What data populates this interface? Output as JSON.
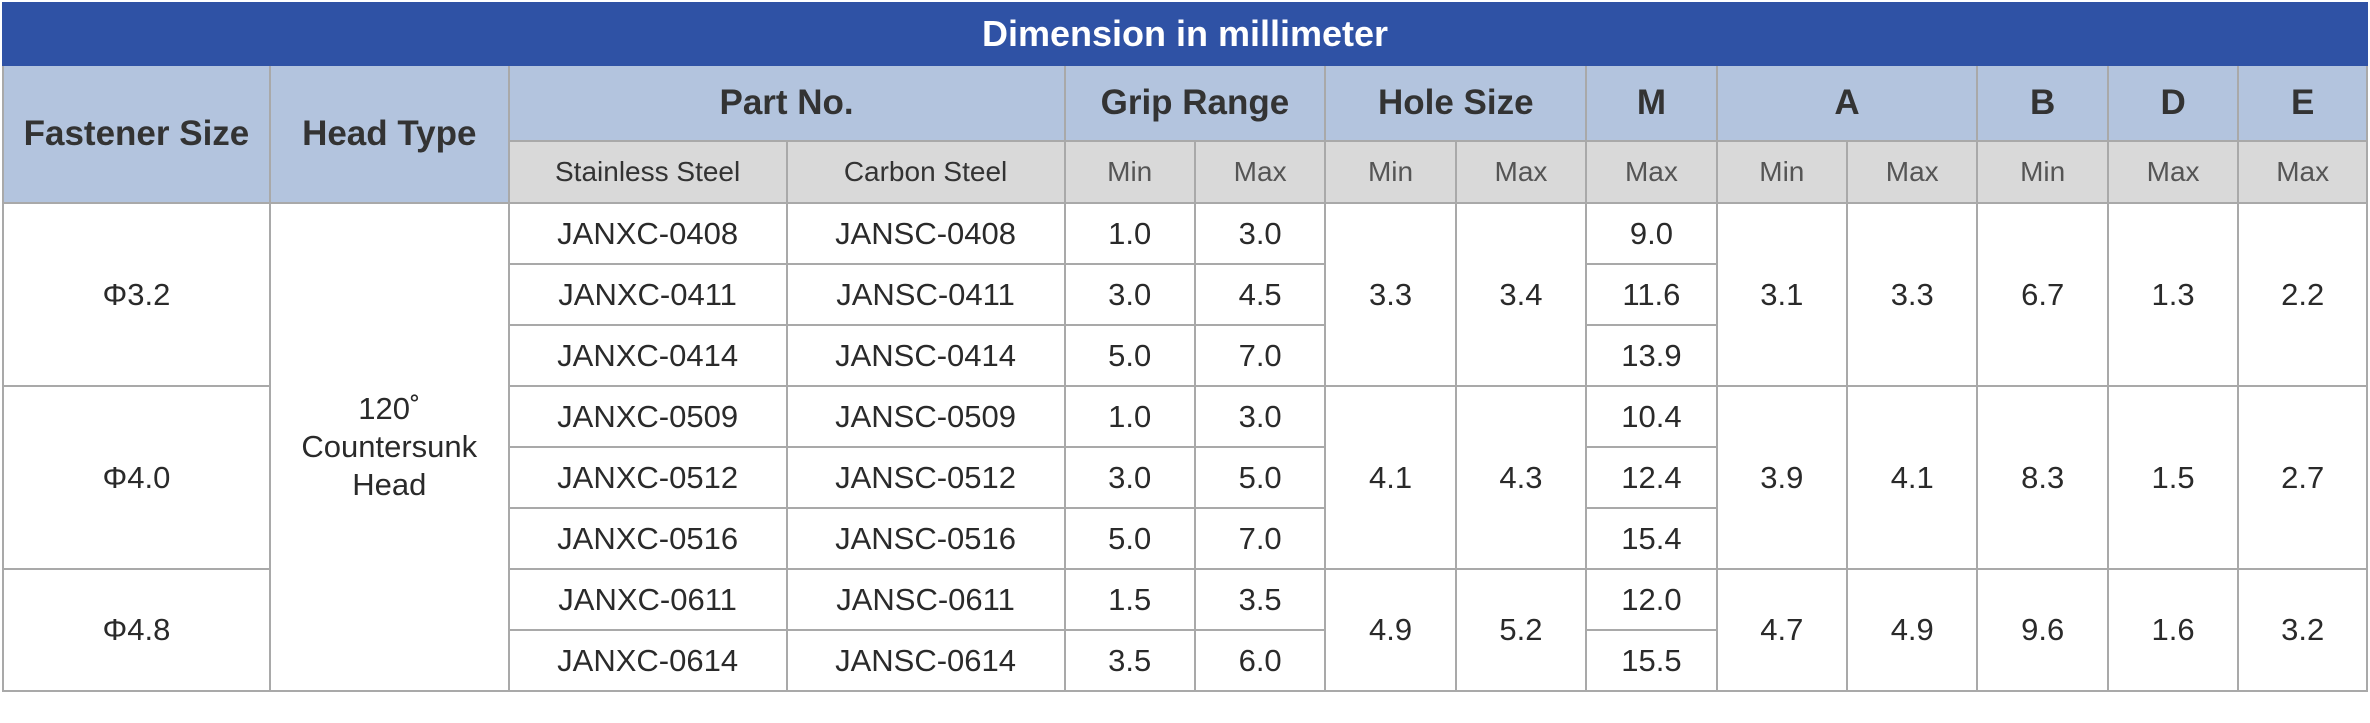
{
  "title": "Dimension in millimeter",
  "headers": {
    "fastener_size": "Fastener Size",
    "head_type": "Head Type",
    "part_no": "Part No.",
    "grip_range": "Grip Range",
    "hole_size": "Hole Size",
    "m": "M",
    "a": "A",
    "b": "B",
    "d": "D",
    "e": "E",
    "stainless_steel": "Stainless Steel",
    "carbon_steel": "Carbon Steel",
    "grip_min": "Min",
    "grip_max": "Max",
    "hole_min": "Min",
    "hole_max": "Max",
    "m_max": "Max",
    "a_min": "Min",
    "a_max": "Max",
    "b_min": "Min",
    "d_max": "Max",
    "e_max": "Max"
  },
  "head_type": {
    "line1": "120˚",
    "line2": "Countersunk",
    "line3": "Head"
  },
  "groups": [
    {
      "size": "Φ3.2",
      "hole_min": "3.3",
      "hole_max": "3.4",
      "a_min": "3.1",
      "a_max": "3.3",
      "b_min": "6.7",
      "d_max": "1.3",
      "e_max": "2.2",
      "rows": [
        {
          "ss": "JANXC-0408",
          "cs": "JANSC-0408",
          "grip_min": "1.0",
          "grip_max": "3.0",
          "m_max": "9.0"
        },
        {
          "ss": "JANXC-0411",
          "cs": "JANSC-0411",
          "grip_min": "3.0",
          "grip_max": "4.5",
          "m_max": "11.6"
        },
        {
          "ss": "JANXC-0414",
          "cs": "JANSC-0414",
          "grip_min": "5.0",
          "grip_max": "7.0",
          "m_max": "13.9"
        }
      ]
    },
    {
      "size": "Φ4.0",
      "hole_min": "4.1",
      "hole_max": "4.3",
      "a_min": "3.9",
      "a_max": "4.1",
      "b_min": "8.3",
      "d_max": "1.5",
      "e_max": "2.7",
      "rows": [
        {
          "ss": "JANXC-0509",
          "cs": "JANSC-0509",
          "grip_min": "1.0",
          "grip_max": "3.0",
          "m_max": "10.4"
        },
        {
          "ss": "JANXC-0512",
          "cs": "JANSC-0512",
          "grip_min": "3.0",
          "grip_max": "5.0",
          "m_max": "12.4"
        },
        {
          "ss": "JANXC-0516",
          "cs": "JANSC-0516",
          "grip_min": "5.0",
          "grip_max": "7.0",
          "m_max": "15.4"
        }
      ]
    },
    {
      "size": "Φ4.8",
      "hole_min": "4.9",
      "hole_max": "5.2",
      "a_min": "4.7",
      "a_max": "4.9",
      "b_min": "9.6",
      "d_max": "1.6",
      "e_max": "3.2",
      "rows": [
        {
          "ss": "JANXC-0611",
          "cs": "JANSC-0611",
          "grip_min": "1.5",
          "grip_max": "3.5",
          "m_max": "12.0"
        },
        {
          "ss": "JANXC-0614",
          "cs": "JANSC-0614",
          "grip_min": "3.5",
          "grip_max": "6.0",
          "m_max": "15.5"
        }
      ]
    }
  ]
}
